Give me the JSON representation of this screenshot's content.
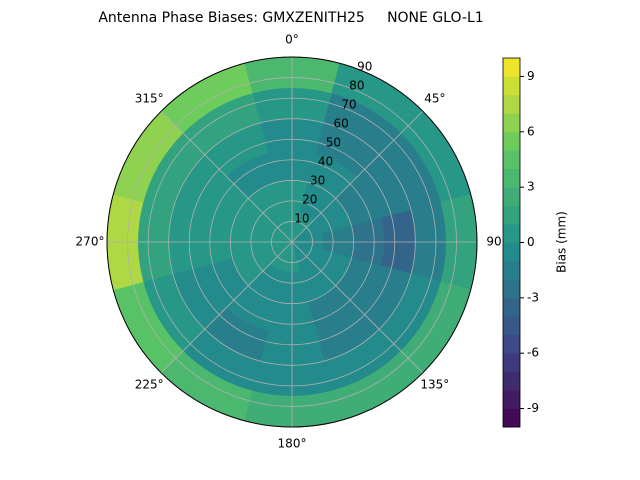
{
  "chart_data": {
    "type": "polar_contour",
    "title": "Antenna Phase Biases: GMXZENITH25     NONE GLO-L1",
    "azimuth": [
      0,
      30,
      60,
      90,
      120,
      150,
      180,
      210,
      240,
      270,
      300,
      330
    ],
    "zenith_edges": [
      0,
      15,
      30,
      45,
      60,
      75,
      90
    ],
    "values": [
      [
        0,
        0,
        -1,
        -1,
        -1,
        -1,
        0,
        0,
        0,
        0,
        0,
        0
      ],
      [
        0,
        -1,
        -1,
        -2,
        -1,
        -1,
        -1,
        -1,
        0,
        0,
        0,
        0
      ],
      [
        -1,
        -1,
        -2,
        -3,
        -2,
        -2,
        -1,
        -1,
        -1,
        0,
        0,
        -1
      ],
      [
        -1,
        -2,
        -2,
        -4,
        -2,
        -2,
        -1,
        -2,
        -1,
        0,
        0,
        0
      ],
      [
        0,
        -2,
        -2,
        -2,
        -1,
        -1,
        -1,
        -1,
        0,
        1,
        1,
        1
      ],
      [
        3,
        0,
        0,
        1,
        2,
        2,
        2,
        3,
        4,
        7,
        6,
        5
      ]
    ],
    "rlim": [
      0,
      90
    ],
    "rticks": [
      10,
      20,
      30,
      40,
      50,
      60,
      70,
      80,
      90
    ],
    "thetaticks": [
      {
        "value": 0,
        "label": "0°"
      },
      {
        "value": 45,
        "label": "45°"
      },
      {
        "value": 90,
        "label": "90"
      },
      {
        "value": 135,
        "label": "135°"
      },
      {
        "value": 180,
        "label": "180°"
      },
      {
        "value": 225,
        "label": "225°"
      },
      {
        "value": 270,
        "label": "270°"
      },
      {
        "value": 315,
        "label": "315°"
      }
    ],
    "colorbar_label": "Bias (mm)",
    "clim": [
      -10,
      10
    ],
    "levels": [
      -10,
      -9,
      -8,
      -7,
      -6,
      -5,
      -4,
      -3,
      -2,
      -1,
      0,
      1,
      2,
      3,
      4,
      5,
      6,
      7,
      8,
      9,
      10
    ],
    "cticks": [
      -9,
      -6,
      -3,
      0,
      3,
      6,
      9
    ],
    "colormap": [
      "#440154",
      "#3b528b",
      "#21918c",
      "#5ec962",
      "#fde725"
    ],
    "grid": true
  }
}
